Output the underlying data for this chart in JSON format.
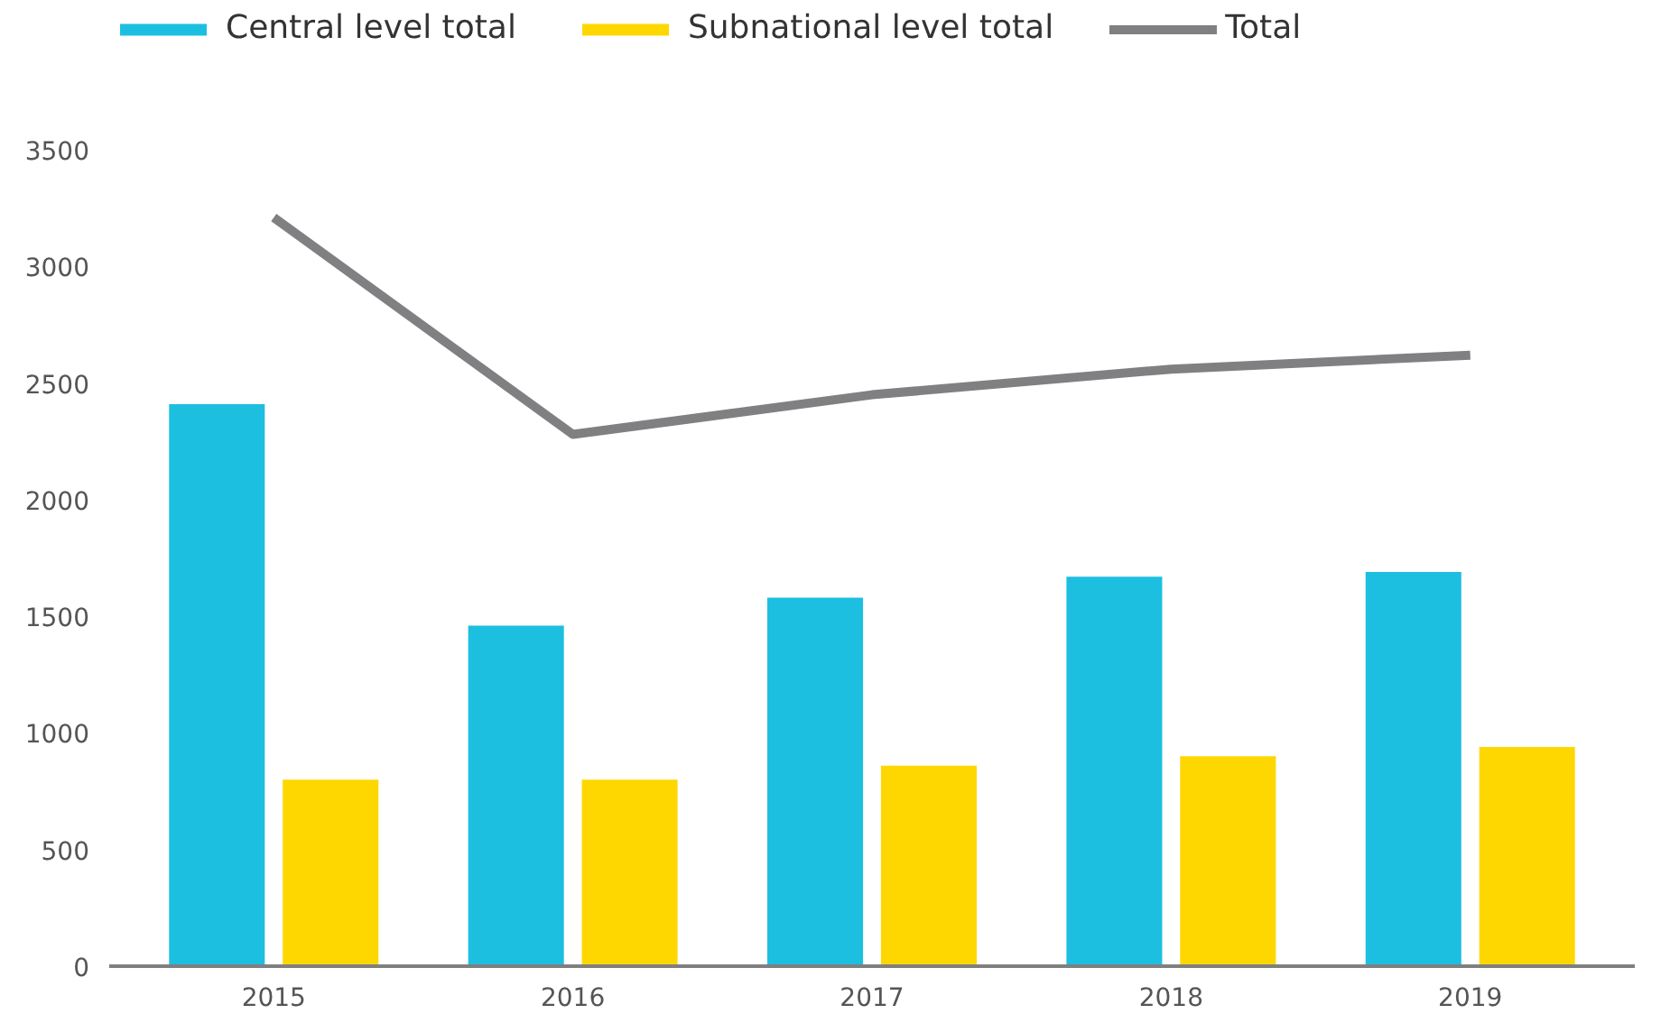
{
  "chart_data": {
    "type": "bar",
    "categories": [
      "2015",
      "2016",
      "2017",
      "2018",
      "2019"
    ],
    "series": [
      {
        "name": "Central level total",
        "color": "#1dbfe0",
        "values": [
          2410,
          1460,
          1580,
          1670,
          1690
        ]
      },
      {
        "name": "Subnational level total",
        "color": "#ffd700",
        "values": [
          800,
          800,
          860,
          900,
          940
        ]
      },
      {
        "name": "Total",
        "type": "line",
        "color": "#808083",
        "values": [
          3210,
          2280,
          2450,
          2560,
          2620
        ]
      }
    ],
    "ylim": [
      0,
      4100
    ],
    "yticks": [
      0,
      500,
      1000,
      1500,
      2000,
      2500,
      3000,
      3500
    ],
    "grid": false,
    "legend": "top"
  }
}
